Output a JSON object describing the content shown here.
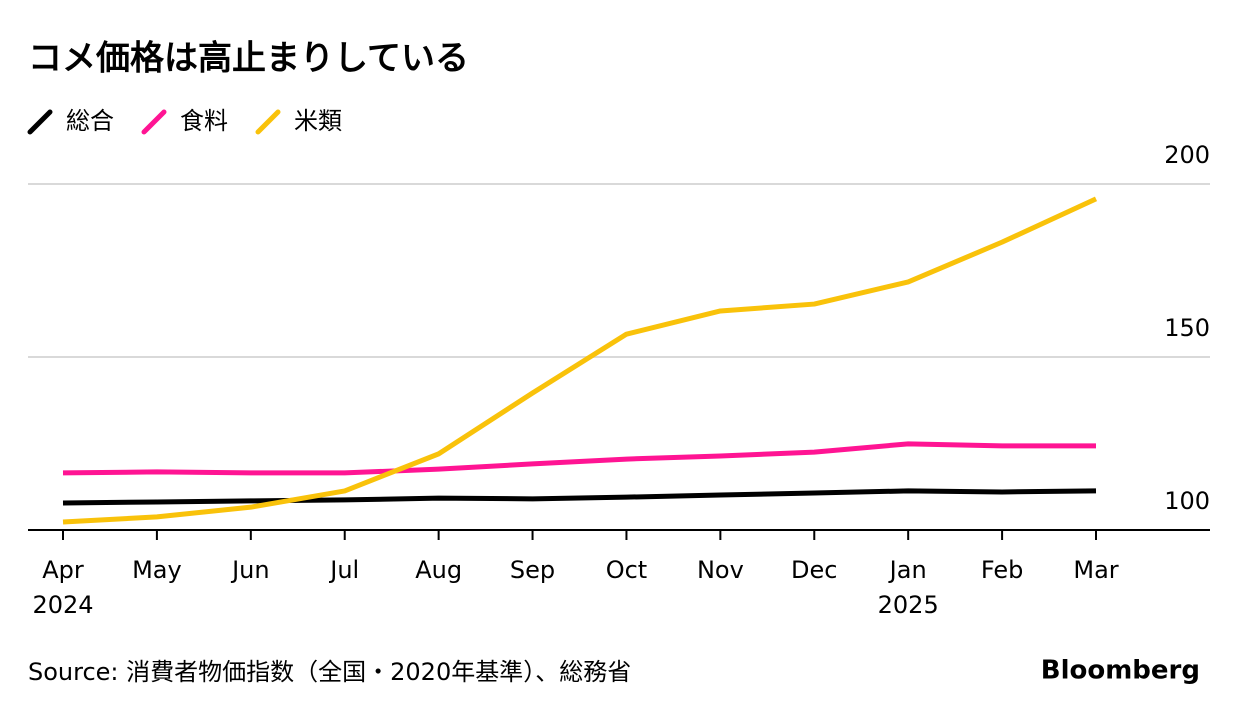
{
  "chart_data": {
    "type": "line",
    "title": "コメ価格は高止まりしている",
    "categories": [
      "Apr",
      "May",
      "Jun",
      "Jul",
      "Aug",
      "Sep",
      "Oct",
      "Nov",
      "Dec",
      "Jan",
      "Feb",
      "Mar"
    ],
    "category_sublabels": [
      "2024",
      null,
      null,
      null,
      null,
      null,
      null,
      null,
      null,
      "2025",
      null,
      null
    ],
    "series": [
      {
        "name": "総合",
        "color": "#000000",
        "values": [
          107.8,
          108.1,
          108.4,
          108.7,
          109.2,
          109.0,
          109.5,
          110.1,
          110.7,
          111.3,
          111.0,
          111.3
        ]
      },
      {
        "name": "食料",
        "color": "#ff1493",
        "values": [
          116.5,
          116.8,
          116.5,
          116.5,
          117.6,
          119.1,
          120.5,
          121.4,
          122.5,
          124.9,
          124.3,
          124.3
        ]
      },
      {
        "name": "米類",
        "color": "#f9c20a",
        "values": [
          102.3,
          103.8,
          106.6,
          111.3,
          122.0,
          139.6,
          156.6,
          163.3,
          165.3,
          171.7,
          183.2,
          195.7
        ]
      }
    ],
    "ylim": [
      100,
      200
    ],
    "yticks": [
      100,
      150,
      200
    ],
    "grid": true,
    "source": "Source: 消費者物価指数（全国・2020年基準）、総務省",
    "logo": "Bloomberg"
  }
}
